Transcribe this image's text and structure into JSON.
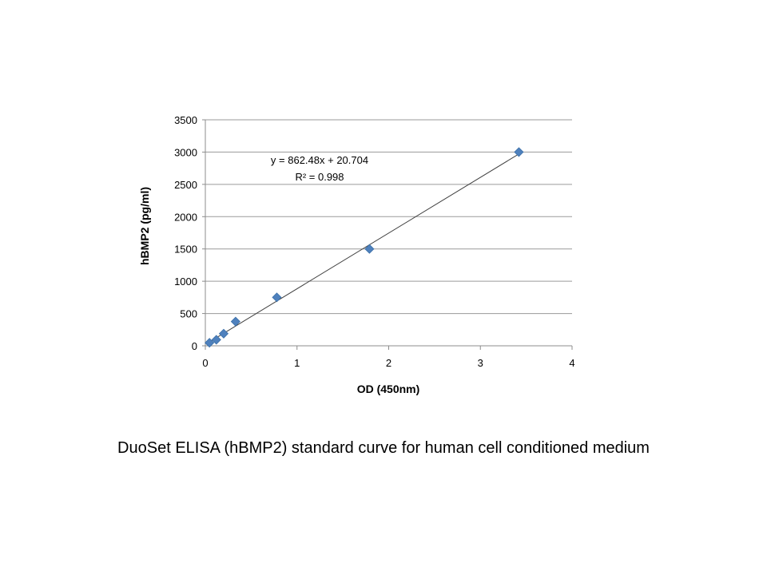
{
  "caption": "DuoSet ELISA (hBMP2) standard curve for human cell conditioned medium",
  "chart_data": {
    "type": "scatter",
    "title": "",
    "xlabel": "OD (450nm)",
    "ylabel": "hBMP2 (pg/ml)",
    "xlim": [
      0,
      4
    ],
    "ylim": [
      0,
      3500
    ],
    "x_ticks": [
      0,
      1,
      2,
      3,
      4
    ],
    "y_ticks": [
      0,
      500,
      1000,
      1500,
      2000,
      2500,
      3000,
      3500
    ],
    "grid": "horizontal",
    "legend": "none",
    "marker": "diamond",
    "marker_color": "#4F81BD",
    "series": [
      {
        "x": [
          0.045,
          0.12,
          0.2,
          0.33,
          0.78,
          1.79,
          3.42
        ],
        "y": [
          47,
          94,
          188,
          375,
          750,
          1500,
          3000
        ]
      }
    ],
    "trendline": {
      "type": "linear",
      "slope": 862.48,
      "intercept": 20.704,
      "equation": "y = 862.48x + 20.704",
      "r_squared": "R² = 0.998",
      "color": "#404040"
    }
  }
}
